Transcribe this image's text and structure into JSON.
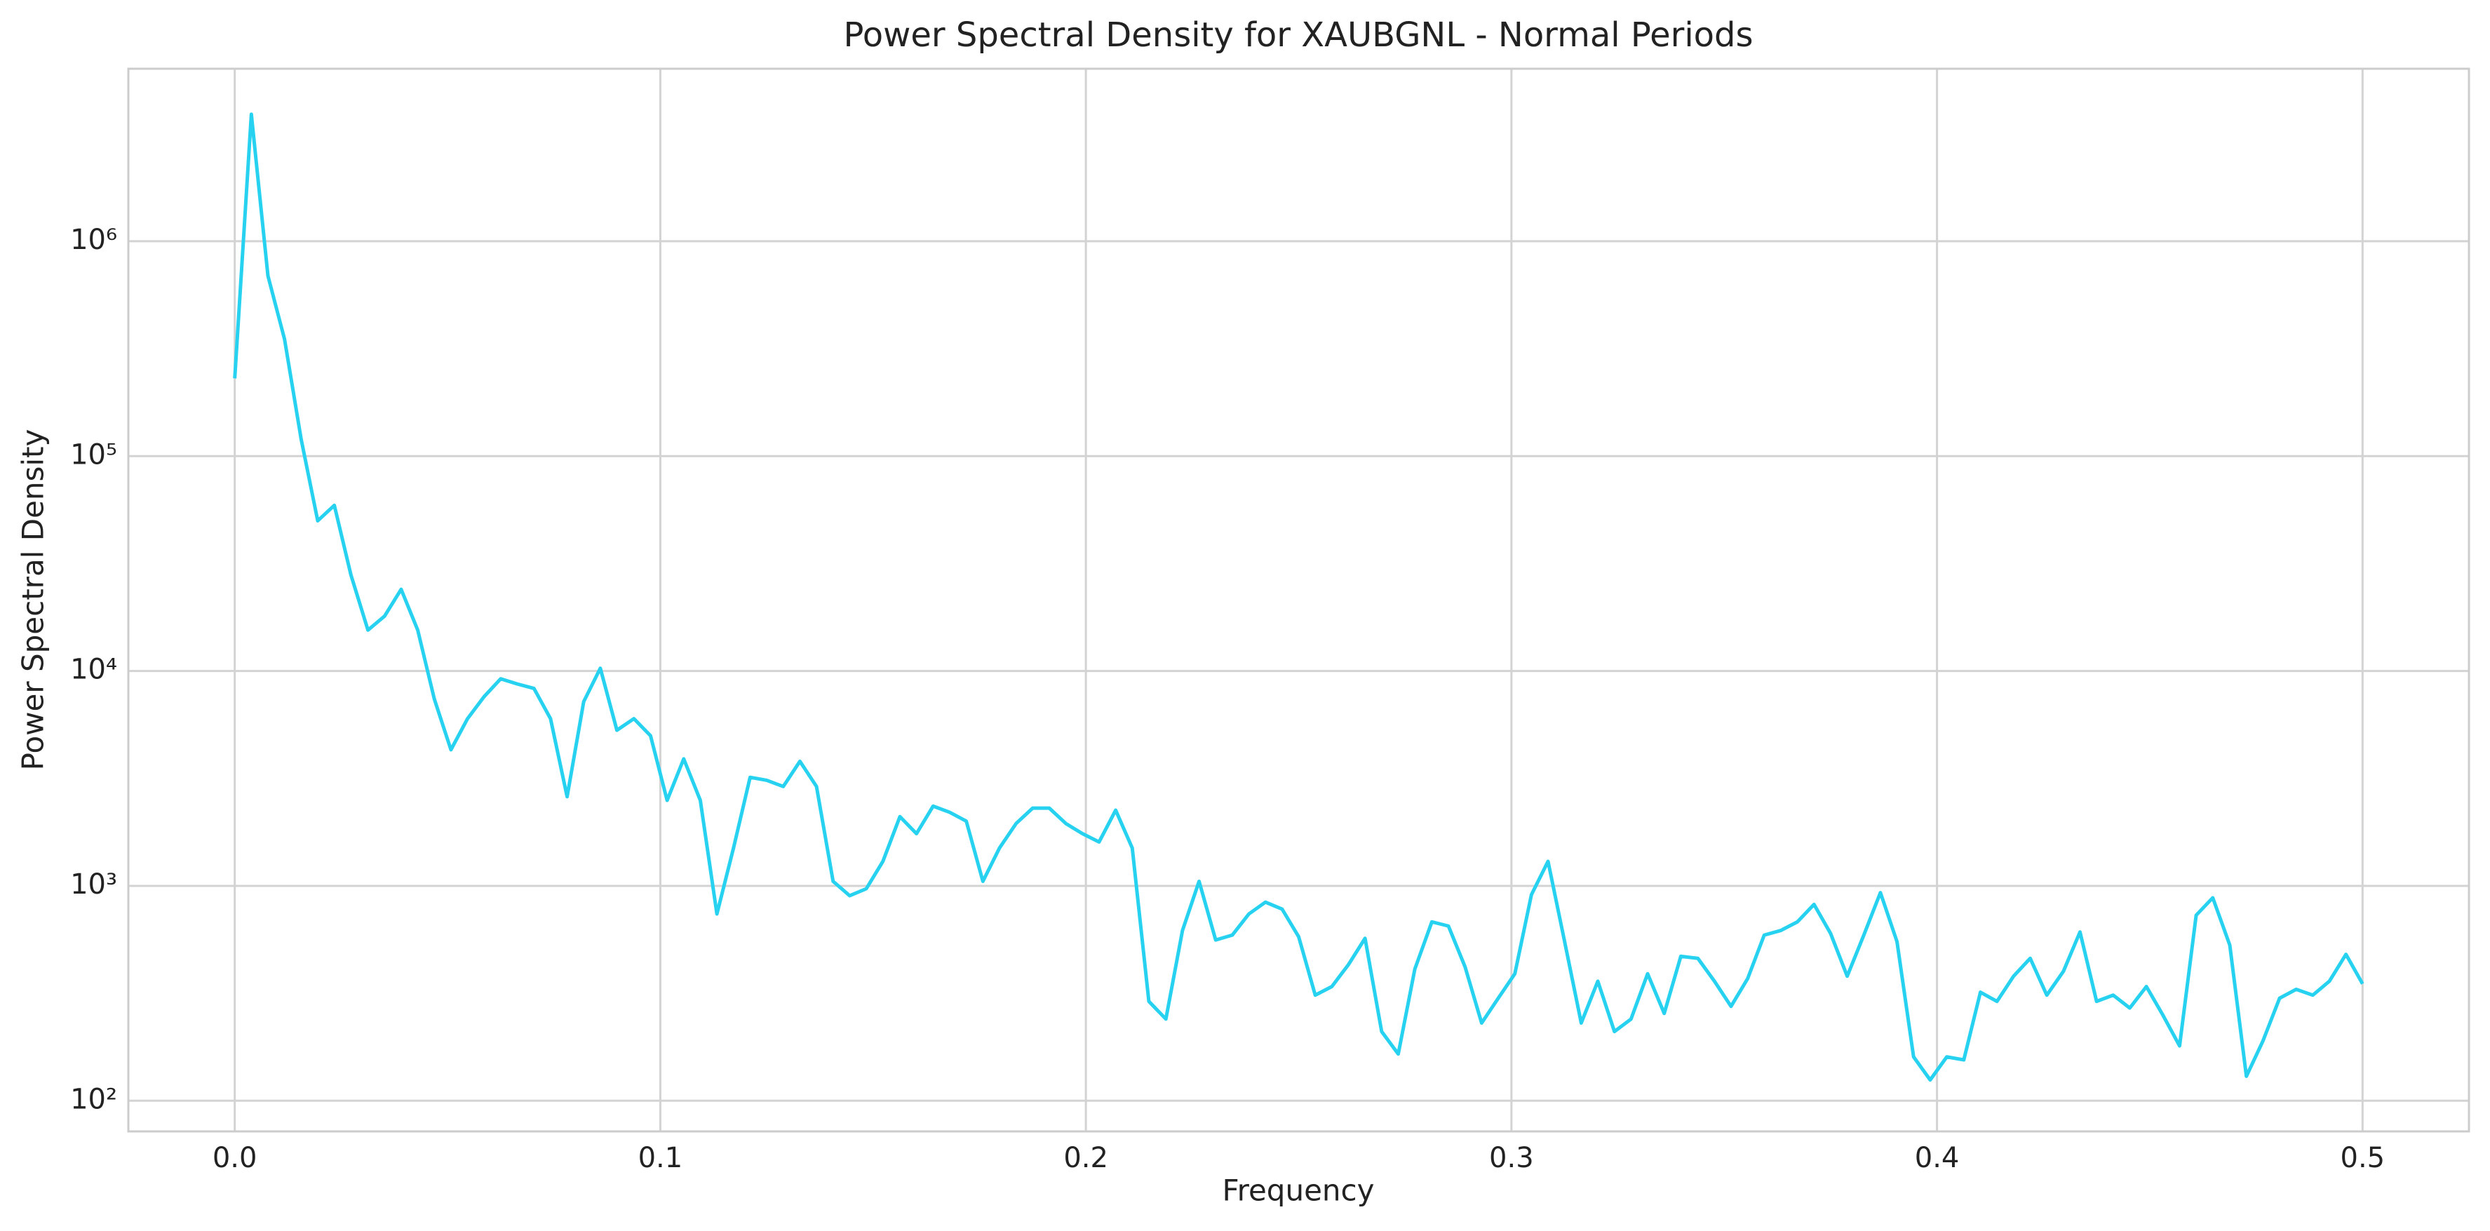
{
  "chart_data": {
    "type": "line",
    "title": "Power Spectral Density for XAUBGNL - Normal Periods",
    "xlabel": "Frequency",
    "ylabel": "Power Spectral Density",
    "yscale": "log",
    "grid": true,
    "xlim": [
      -0.025,
      0.525
    ],
    "ylim": [
      72,
      6350000
    ],
    "xticks": [
      {
        "value": 0,
        "label": "0.0"
      },
      0.1,
      0.2,
      0.3,
      0.4,
      0.5
    ],
    "yticks": [
      {
        "value": 100,
        "label": "10²"
      },
      {
        "value": 1000,
        "label": "10³"
      },
      {
        "value": 10000,
        "label": "10⁴"
      },
      {
        "value": 100000,
        "label": "10⁵"
      },
      {
        "value": 1000000,
        "label": "10⁶"
      }
    ],
    "x": [
      0,
      0.0039,
      0.0078,
      0.0117,
      0.0156,
      0.0195,
      0.0234,
      0.0273,
      0.0313,
      0.0352,
      0.0391,
      0.043,
      0.0469,
      0.0508,
      0.0547,
      0.0586,
      0.0625,
      0.0664,
      0.0703,
      0.0742,
      0.0781,
      0.082,
      0.0859,
      0.0898,
      0.0938,
      0.0977,
      0.1016,
      0.1055,
      0.1094,
      0.1133,
      0.1172,
      0.1211,
      0.125,
      0.1289,
      0.1328,
      0.1367,
      0.1406,
      0.1445,
      0.1484,
      0.1523,
      0.1563,
      0.1602,
      0.1641,
      0.168,
      0.1719,
      0.1758,
      0.1797,
      0.1836,
      0.1875,
      0.1914,
      0.1953,
      0.1992,
      0.2031,
      0.207,
      0.2109,
      0.2148,
      0.2188,
      0.2227,
      0.2266,
      0.2305,
      0.2344,
      0.2383,
      0.2422,
      0.2461,
      0.25,
      0.2539,
      0.2578,
      0.2617,
      0.2656,
      0.2695,
      0.2734,
      0.2773,
      0.2813,
      0.2852,
      0.2891,
      0.293,
      0.2969,
      0.3008,
      0.3047,
      0.3086,
      0.3125,
      0.3164,
      0.3203,
      0.3242,
      0.3281,
      0.332,
      0.3359,
      0.3398,
      0.3438,
      0.3477,
      0.3516,
      0.3555,
      0.3594,
      0.3633,
      0.3672,
      0.3711,
      0.375,
      0.3789,
      0.3828,
      0.3867,
      0.3906,
      0.3945,
      0.3984,
      0.4023,
      0.4063,
      0.4102,
      0.4141,
      0.418,
      0.4219,
      0.4258,
      0.4297,
      0.4336,
      0.4375,
      0.4414,
      0.4453,
      0.4492,
      0.4531,
      0.457,
      0.4609,
      0.4648,
      0.4688,
      0.4727,
      0.4766,
      0.4805,
      0.4844,
      0.4883,
      0.4922,
      0.4961,
      0.5
    ],
    "series": [
      {
        "color": "#26d2f0",
        "values": [
          230000,
          3900000,
          690000,
          350000,
          120000,
          50000,
          59000,
          28000,
          15500,
          18000,
          24000,
          15500,
          7400,
          4300,
          6000,
          7600,
          9200,
          8700,
          8300,
          6000,
          2600,
          7200,
          10300,
          5300,
          6000,
          5000,
          2500,
          3900,
          2500,
          740,
          1500,
          3200,
          3100,
          2900,
          3800,
          2900,
          1050,
          900,
          970,
          1300,
          2100,
          1750,
          2350,
          2200,
          2000,
          1050,
          1500,
          1950,
          2300,
          2300,
          1950,
          1750,
          1600,
          2250,
          1500,
          290,
          240,
          620,
          1050,
          560,
          590,
          740,
          840,
          780,
          580,
          310,
          340,
          430,
          570,
          210,
          165,
          410,
          680,
          650,
          420,
          230,
          300,
          390,
          910,
          1300,
          550,
          230,
          360,
          210,
          240,
          390,
          255,
          470,
          460,
          360,
          275,
          370,
          590,
          620,
          680,
          820,
          600,
          380,
          590,
          930,
          550,
          160,
          125,
          160,
          155,
          320,
          290,
          380,
          460,
          310,
          400,
          610,
          290,
          310,
          270,
          340,
          250,
          180,
          730,
          880,
          530,
          130,
          190,
          300,
          330,
          310,
          360,
          480,
          350
        ]
      }
    ]
  }
}
